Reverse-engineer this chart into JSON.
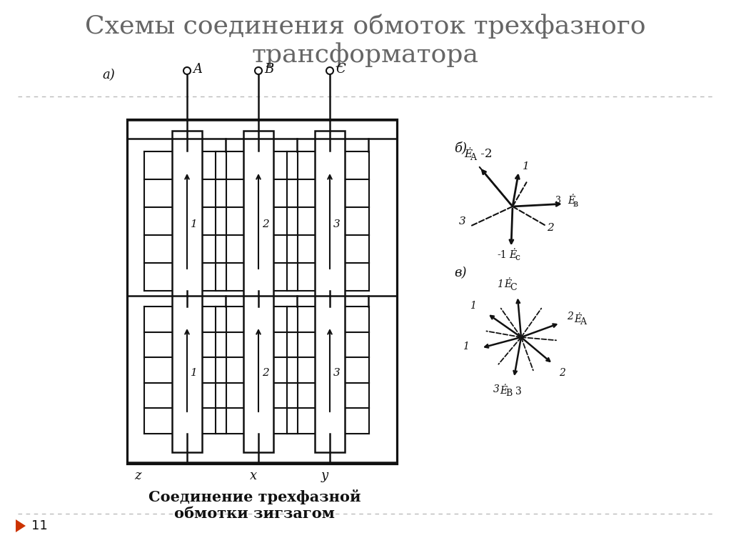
{
  "title": "Схемы соединения обмоток трехфазного\nтрансформатора",
  "title_fontsize": 26,
  "title_color": "#666666",
  "bg_color": "#ffffff",
  "slide_number": "11",
  "caption": "Соединение трехфазной\nобмотки зигзагом",
  "caption_fontsize": 15,
  "divider_color": "#bbbbbb",
  "arrow_color": "#cc3300",
  "sc": "#111111",
  "lw_s": 1.8
}
